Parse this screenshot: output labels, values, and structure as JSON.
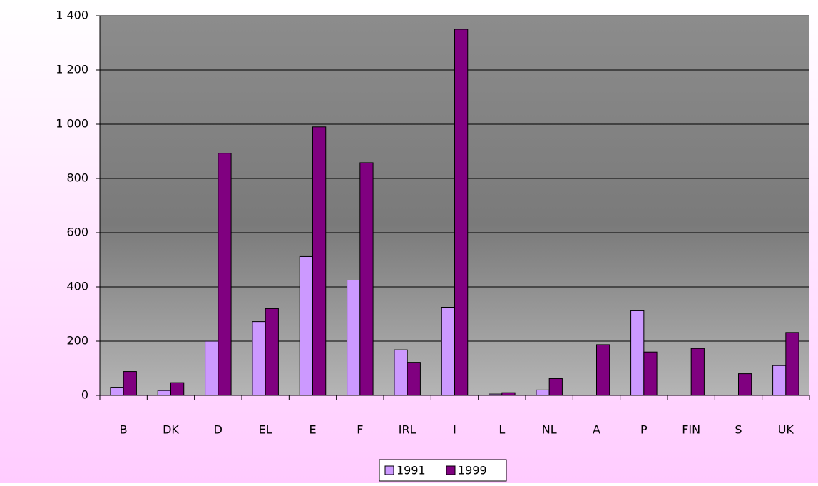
{
  "chart_data": {
    "type": "bar",
    "categories": [
      "B",
      "DK",
      "D",
      "EL",
      "E",
      "F",
      "IRL",
      "I",
      "L",
      "NL",
      "A",
      "P",
      "FIN",
      "S",
      "UK"
    ],
    "series": [
      {
        "name": "1991",
        "color": "#cc99ff",
        "values": [
          30,
          18,
          200,
          272,
          512,
          425,
          168,
          325,
          5,
          20,
          null,
          312,
          null,
          null,
          110
        ]
      },
      {
        "name": "1999",
        "color": "#800080",
        "values": [
          88,
          47,
          893,
          320,
          990,
          858,
          122,
          1350,
          10,
          62,
          187,
          160,
          173,
          80,
          232
        ]
      }
    ],
    "ylim": [
      0,
      1400
    ],
    "yticks": [
      0,
      200,
      400,
      600,
      800,
      {
        "value": 1000,
        "label": "1 000"
      },
      {
        "value": 1200,
        "label": "1 200"
      },
      {
        "value": 1400,
        "label": "1 400"
      }
    ],
    "grid": true
  }
}
